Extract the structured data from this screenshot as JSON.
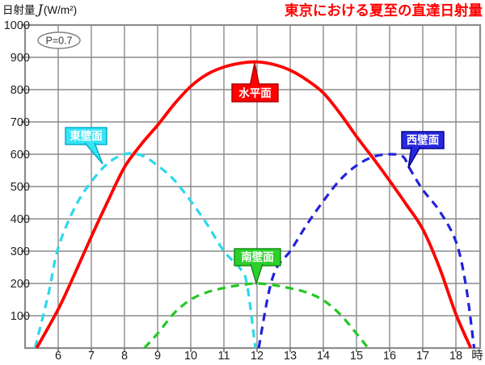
{
  "chart_data": {
    "type": "line",
    "title": "東京における夏至の直達日射量",
    "ylabel_prefix": "日射量",
    "ylabel_symbol": "J",
    "ylabel_unit": "(W/m²)",
    "xlabel": "時",
    "annotation": "P=0.7",
    "xlim": [
      5,
      18.73
    ],
    "ylim": [
      0,
      1000
    ],
    "x_ticks": [
      6,
      7,
      8,
      9,
      10,
      11,
      12,
      13,
      14,
      15,
      16,
      17,
      18
    ],
    "y_ticks": [
      100,
      200,
      300,
      400,
      500,
      600,
      700,
      800,
      900,
      1000
    ],
    "grid": true,
    "legend_position": "callout-labels-on-curves",
    "series": [
      {
        "name": "水平面",
        "color": "#FF0000",
        "style": "solid",
        "points": [
          [
            5.35,
            0
          ],
          [
            6,
            120
          ],
          [
            6.5,
            230
          ],
          [
            7,
            345
          ],
          [
            7.5,
            455
          ],
          [
            8,
            560
          ],
          [
            8.5,
            630
          ],
          [
            9,
            690
          ],
          [
            9.5,
            755
          ],
          [
            10,
            810
          ],
          [
            10.5,
            848
          ],
          [
            11,
            870
          ],
          [
            11.5,
            882
          ],
          [
            12,
            886
          ],
          [
            12.5,
            878
          ],
          [
            13,
            860
          ],
          [
            13.5,
            830
          ],
          [
            14,
            790
          ],
          [
            14.5,
            727
          ],
          [
            15,
            655
          ],
          [
            15.5,
            588
          ],
          [
            16,
            518
          ],
          [
            16.5,
            445
          ],
          [
            17,
            368
          ],
          [
            17.5,
            250
          ],
          [
            18,
            105
          ],
          [
            18.45,
            0
          ]
        ]
      },
      {
        "name": "東壁面",
        "color": "#2BD8EC",
        "style": "dashed",
        "points": [
          [
            5.3,
            0
          ],
          [
            5.7,
            165
          ],
          [
            6,
            310
          ],
          [
            6.5,
            435
          ],
          [
            7,
            515
          ],
          [
            7.5,
            572
          ],
          [
            8,
            600
          ],
          [
            8.5,
            597
          ],
          [
            9,
            565
          ],
          [
            9.5,
            520
          ],
          [
            10,
            455
          ],
          [
            10.5,
            382
          ],
          [
            11,
            300
          ],
          [
            11.5,
            245
          ],
          [
            11.7,
            195
          ],
          [
            11.95,
            0
          ]
        ]
      },
      {
        "name": "西壁面",
        "color": "#2222DC",
        "style": "dashed",
        "points": [
          [
            12.05,
            0
          ],
          [
            12.35,
            170
          ],
          [
            12.6,
            250
          ],
          [
            13,
            300
          ],
          [
            13.5,
            382
          ],
          [
            14,
            455
          ],
          [
            14.5,
            520
          ],
          [
            15,
            565
          ],
          [
            15.5,
            592
          ],
          [
            16,
            600
          ],
          [
            16.4,
            593
          ],
          [
            16.6,
            557
          ],
          [
            17,
            490
          ],
          [
            17.5,
            425
          ],
          [
            18,
            330
          ],
          [
            18.3,
            195
          ],
          [
            18.55,
            0
          ]
        ]
      },
      {
        "name": "南壁面",
        "color": "#22C822",
        "style": "dashed",
        "points": [
          [
            8.6,
            0
          ],
          [
            9,
            45
          ],
          [
            9.5,
            108
          ],
          [
            10,
            150
          ],
          [
            10.5,
            173
          ],
          [
            11,
            186
          ],
          [
            11.5,
            195
          ],
          [
            12,
            200
          ],
          [
            12.5,
            195
          ],
          [
            13,
            185
          ],
          [
            13.5,
            172
          ],
          [
            14,
            148
          ],
          [
            14.5,
            105
          ],
          [
            15,
            45
          ],
          [
            15.35,
            0
          ]
        ]
      }
    ]
  },
  "colors": {
    "grid": "#8C8C8C",
    "axis_text": "#222222",
    "title": "#FF0000",
    "callout_horizontal_fill": "#FF0000",
    "callout_horizontal_border": "#A50000",
    "callout_east_fill": "#37E4F6",
    "callout_east_border": "#00A8C8",
    "callout_west_fill": "#2828E0",
    "callout_west_border": "#00007F",
    "callout_south_fill": "#2CCF2C",
    "callout_south_border": "#118811"
  }
}
